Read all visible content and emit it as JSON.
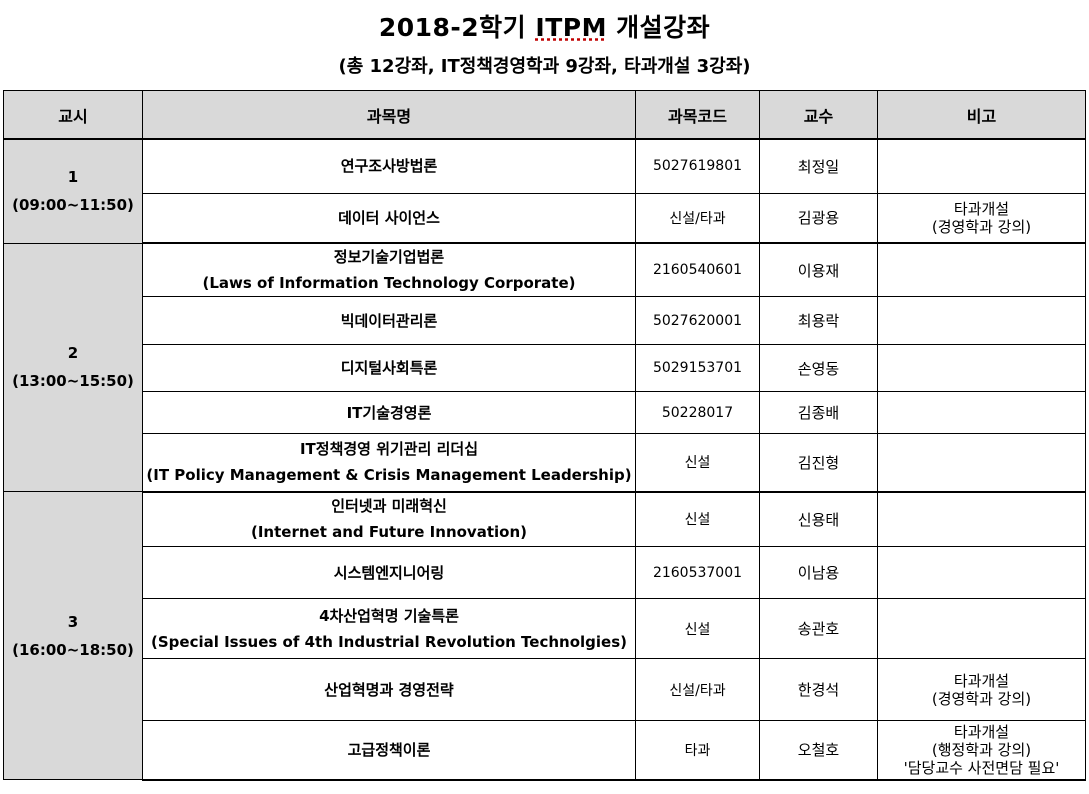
{
  "title": {
    "pre": "2018-2학기 ",
    "underlined": "ITPM",
    "post": " 개설강좌"
  },
  "subtitle": "(총 12강좌, IT정책경영학과 9강좌, 타과개설 3강좌)",
  "headers": {
    "period": "교시",
    "name": "과목명",
    "code": "과목코드",
    "prof": "교수",
    "note": "비고"
  },
  "groups": [
    {
      "period": "1",
      "time": "(09:00~11:50)",
      "rows": [
        {
          "name": "연구조사방법론",
          "sub": "",
          "code": "5027619801",
          "prof": "최정일",
          "note": []
        },
        {
          "name": "데이터 사이언스",
          "sub": "",
          "code": "신설/타과",
          "prof": "김광용",
          "note": [
            "타과개설",
            "(경영학과 강의)"
          ]
        }
      ]
    },
    {
      "period": "2",
      "time": "(13:00~15:50)",
      "rows": [
        {
          "name": "정보기술기업법론",
          "sub": "(Laws of Information Technology Corporate)",
          "code": "2160540601",
          "prof": "이용재",
          "note": []
        },
        {
          "name": "빅데이터관리론",
          "sub": "",
          "code": "5027620001",
          "prof": "최용락",
          "note": []
        },
        {
          "name": "디지털사회특론",
          "sub": "",
          "code": "5029153701",
          "prof": "손영동",
          "note": []
        },
        {
          "name": "IT기술경영론",
          "sub": "",
          "code": "50228017",
          "prof": "김종배",
          "note": []
        },
        {
          "name": "IT정책경영 위기관리 리더십",
          "sub": "(IT Policy Management & Crisis Management Leadership)",
          "code": "신설",
          "prof": "김진형",
          "note": []
        }
      ]
    },
    {
      "period": "3",
      "time": "(16:00~18:50)",
      "rows": [
        {
          "name": "인터넷과 미래혁신",
          "sub": "(Internet and Future Innovation)",
          "code": "신설",
          "prof": "신용태",
          "note": []
        },
        {
          "name": "시스템엔지니어링",
          "sub": "",
          "code": "2160537001",
          "prof": "이남용",
          "note": []
        },
        {
          "name": "4차산업혁명 기술특론",
          "sub": "(Special Issues of 4th Industrial Revolution Technolgies)",
          "code": "신설",
          "prof": "송관호",
          "note": []
        },
        {
          "name": "산업혁명과 경영전략",
          "sub": "",
          "code": "신설/타과",
          "prof": "한경석",
          "note": [
            "타과개설",
            "(경영학과 강의)"
          ]
        },
        {
          "name": "고급정책이론",
          "sub": "",
          "code": "타과",
          "prof": "오철호",
          "note": [
            "타과개설",
            "(행정학과 강의)",
            "'담당교수 사전면담 필요'"
          ]
        }
      ]
    }
  ]
}
